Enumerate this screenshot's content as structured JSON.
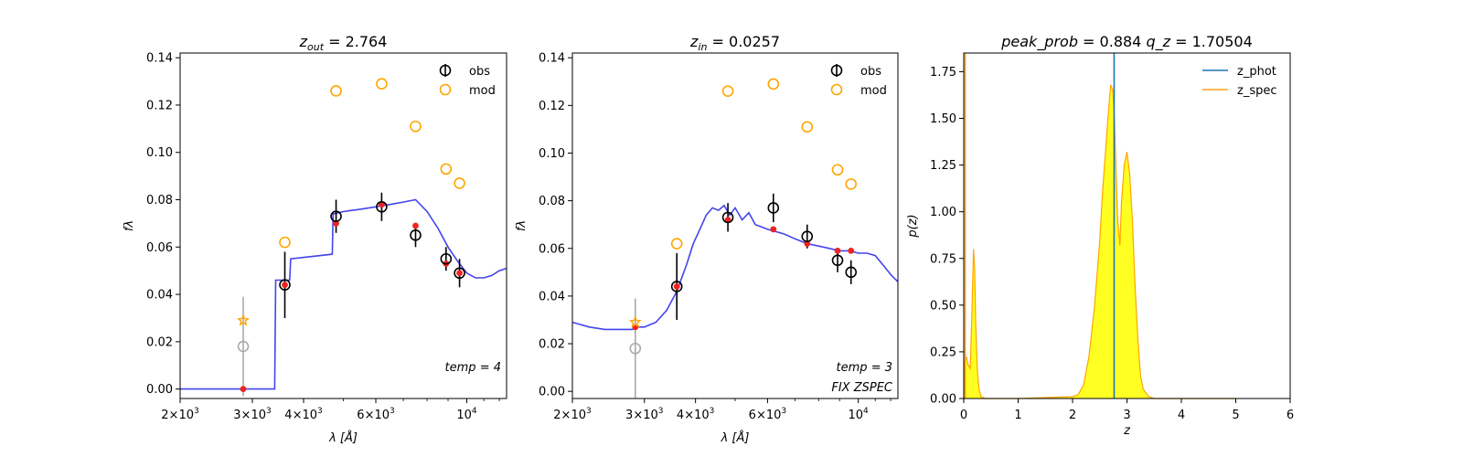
{
  "chart_data": [
    {
      "type": "scatter",
      "panel": "sed-out",
      "title_var": "z",
      "title_sub": "out",
      "title_rest": " = 2.764",
      "xlabel": "λ [Å]",
      "ylabel": "fλ",
      "xscale": "log",
      "xlim": [
        2000,
        12500
      ],
      "ylim": [
        -0.004,
        0.142
      ],
      "xticks": [
        {
          "value": 2000,
          "mant": "2",
          "exp": "3"
        },
        {
          "value": 3000,
          "mant": "3",
          "exp": "3"
        },
        {
          "value": 4000,
          "mant": "4",
          "exp": "3"
        },
        {
          "value": 6000,
          "mant": "6",
          "exp": "3"
        },
        {
          "value": 10000,
          "mant": "",
          "exp": "4"
        }
      ],
      "yticks": [
        0.0,
        0.02,
        0.04,
        0.06,
        0.08,
        0.1,
        0.12,
        0.14
      ],
      "ytick_labels": [
        "0.00",
        "0.02",
        "0.04",
        "0.06",
        "0.08",
        "0.10",
        "0.12",
        "0.14"
      ],
      "legend": [
        "obs",
        "mod"
      ],
      "annotations": [
        "temp = 4"
      ],
      "colors": {
        "model_line": "#4444ee",
        "obs": "#000000",
        "obs_excluded": "#aaaaaa",
        "mod": "#ffa500",
        "synth": "#ee2222"
      },
      "model_line": {
        "x": [
          2000,
          3200,
          3400,
          3420,
          3700,
          3720,
          4700,
          4720,
          5000,
          5500,
          6000,
          6500,
          7000,
          7500,
          8000,
          8500,
          9000,
          9500,
          10000,
          10500,
          11000,
          11500,
          12000,
          12500
        ],
        "y": [
          0.0,
          0.0,
          0.0,
          0.046,
          0.046,
          0.055,
          0.057,
          0.074,
          0.075,
          0.076,
          0.077,
          0.078,
          0.079,
          0.08,
          0.075,
          0.068,
          0.06,
          0.054,
          0.049,
          0.047,
          0.047,
          0.048,
          0.05,
          0.051
        ]
      },
      "obs": [
        {
          "x": 3600,
          "y": 0.044,
          "err": 0.014
        },
        {
          "x": 4800,
          "y": 0.073,
          "err": 0.007
        },
        {
          "x": 6200,
          "y": 0.077,
          "err": 0.006
        },
        {
          "x": 7500,
          "y": 0.065,
          "err": 0.005
        },
        {
          "x": 8900,
          "y": 0.055,
          "err": 0.005
        },
        {
          "x": 9600,
          "y": 0.049,
          "err": 0.006
        }
      ],
      "obs_excluded": [
        {
          "x": 2850,
          "y": 0.018,
          "err": 0.021
        }
      ],
      "mod": [
        {
          "x": 3600,
          "y": 0.062
        },
        {
          "x": 4800,
          "y": 0.126
        },
        {
          "x": 6200,
          "y": 0.129
        },
        {
          "x": 7500,
          "y": 0.111
        },
        {
          "x": 8900,
          "y": 0.093
        },
        {
          "x": 9600,
          "y": 0.087
        }
      ],
      "mod_star": [
        {
          "x": 2850,
          "y": 0.029
        }
      ],
      "synth": [
        {
          "x": 2850,
          "y": 0.0
        },
        {
          "x": 3600,
          "y": 0.044
        },
        {
          "x": 4800,
          "y": 0.07
        },
        {
          "x": 6200,
          "y": 0.078
        },
        {
          "x": 7500,
          "y": 0.069
        },
        {
          "x": 8900,
          "y": 0.053
        },
        {
          "x": 9600,
          "y": 0.049
        }
      ]
    },
    {
      "type": "scatter",
      "panel": "sed-in",
      "title_var": "z",
      "title_sub": "in",
      "title_rest": " = 0.0257",
      "xlabel": "λ [Å]",
      "ylabel": "fλ",
      "xscale": "log",
      "xlim": [
        2000,
        12500
      ],
      "ylim": [
        -0.003,
        0.142
      ],
      "xticks": [
        {
          "value": 2000,
          "mant": "2",
          "exp": "3"
        },
        {
          "value": 3000,
          "mant": "3",
          "exp": "3"
        },
        {
          "value": 4000,
          "mant": "4",
          "exp": "3"
        },
        {
          "value": 6000,
          "mant": "6",
          "exp": "3"
        },
        {
          "value": 10000,
          "mant": "",
          "exp": "4"
        }
      ],
      "yticks": [
        0.0,
        0.02,
        0.04,
        0.06,
        0.08,
        0.1,
        0.12,
        0.14
      ],
      "ytick_labels": [
        "0.00",
        "0.02",
        "0.04",
        "0.06",
        "0.08",
        "0.10",
        "0.12",
        "0.14"
      ],
      "legend": [
        "obs",
        "mod"
      ],
      "annotations": [
        "temp = 3",
        "FIX ZSPEC"
      ],
      "colors": {
        "model_line": "#4444ee",
        "obs": "#000000",
        "obs_excluded": "#aaaaaa",
        "mod": "#ffa500",
        "synth": "#ee2222"
      },
      "model_line": {
        "x": [
          2000,
          2200,
          2400,
          2600,
          2800,
          2900,
          3000,
          3200,
          3400,
          3600,
          3800,
          3950,
          4100,
          4250,
          4400,
          4550,
          4700,
          4850,
          5000,
          5200,
          5400,
          5600,
          5800,
          6000,
          6300,
          6600,
          7000,
          7500,
          8000,
          8500,
          9000,
          9500,
          10000,
          10500,
          11000,
          11500,
          12000,
          12500
        ],
        "y": [
          0.029,
          0.027,
          0.026,
          0.026,
          0.026,
          0.027,
          0.027,
          0.029,
          0.034,
          0.042,
          0.053,
          0.062,
          0.068,
          0.074,
          0.077,
          0.076,
          0.078,
          0.074,
          0.077,
          0.072,
          0.075,
          0.07,
          0.069,
          0.068,
          0.067,
          0.066,
          0.064,
          0.062,
          0.061,
          0.06,
          0.059,
          0.059,
          0.058,
          0.058,
          0.057,
          0.053,
          0.049,
          0.046
        ]
      },
      "obs": [
        {
          "x": 3600,
          "y": 0.044,
          "err": 0.014
        },
        {
          "x": 4800,
          "y": 0.073,
          "err": 0.006
        },
        {
          "x": 6200,
          "y": 0.077,
          "err": 0.006
        },
        {
          "x": 7500,
          "y": 0.065,
          "err": 0.005
        },
        {
          "x": 8900,
          "y": 0.055,
          "err": 0.005
        },
        {
          "x": 9600,
          "y": 0.05,
          "err": 0.005
        }
      ],
      "obs_excluded": [
        {
          "x": 2850,
          "y": 0.018,
          "err": 0.021
        }
      ],
      "mod": [
        {
          "x": 3600,
          "y": 0.062
        },
        {
          "x": 4800,
          "y": 0.126
        },
        {
          "x": 6200,
          "y": 0.129
        },
        {
          "x": 7500,
          "y": 0.111
        },
        {
          "x": 8900,
          "y": 0.093
        },
        {
          "x": 9600,
          "y": 0.087
        }
      ],
      "mod_star": [
        {
          "x": 2850,
          "y": 0.029
        }
      ],
      "synth": [
        {
          "x": 2850,
          "y": 0.027
        },
        {
          "x": 3600,
          "y": 0.044
        },
        {
          "x": 4800,
          "y": 0.072
        },
        {
          "x": 6200,
          "y": 0.068
        },
        {
          "x": 7500,
          "y": 0.062
        },
        {
          "x": 8900,
          "y": 0.059
        },
        {
          "x": 9600,
          "y": 0.059
        }
      ]
    },
    {
      "type": "area",
      "panel": "pz",
      "title_left_var": "peak_prob",
      "title_left_rest": " = 0.884",
      "title_right_var": "q_z",
      "title_right_rest": " = 1.70504",
      "xlabel": "z",
      "ylabel": "p(z)",
      "xlim": [
        0,
        6
      ],
      "ylim": [
        0,
        1.85
      ],
      "xticks": [
        0,
        1,
        2,
        3,
        4,
        5,
        6
      ],
      "xtick_labels": [
        "0",
        "1",
        "2",
        "3",
        "4",
        "5",
        "6"
      ],
      "yticks": [
        0,
        0.25,
        0.5,
        0.75,
        1.0,
        1.25,
        1.5,
        1.75
      ],
      "ytick_labels": [
        "0.00",
        "0.25",
        "0.50",
        "0.75",
        "1.00",
        "1.25",
        "1.50",
        "1.75"
      ],
      "legend": [
        {
          "label": "z_phot",
          "color": "#1f77b4"
        },
        {
          "label": "z_spec",
          "color": "#ff9f1a"
        }
      ],
      "z_phot": 2.764,
      "z_spec": 0.0257,
      "colors": {
        "fill": "#ffff22",
        "curve": "#ffa500",
        "z_phot": "#1f77b4",
        "z_spec": "#ff9f1a"
      },
      "pz": {
        "x": [
          0,
          0.02,
          0.05,
          0.08,
          0.12,
          0.15,
          0.18,
          0.2,
          0.22,
          0.25,
          0.28,
          0.32,
          0.4,
          1.0,
          2.0,
          2.1,
          2.2,
          2.3,
          2.4,
          2.5,
          2.55,
          2.6,
          2.65,
          2.7,
          2.74,
          2.77,
          2.8,
          2.83,
          2.87,
          2.9,
          2.95,
          3.0,
          3.05,
          3.1,
          3.15,
          3.2,
          3.25,
          3.3,
          3.4,
          3.5,
          5.0
        ],
        "y": [
          0,
          0.2,
          0.22,
          0.18,
          0.16,
          0.45,
          0.8,
          0.7,
          0.4,
          0.15,
          0.05,
          0.01,
          0,
          0,
          0.01,
          0.02,
          0.07,
          0.22,
          0.48,
          0.85,
          1.1,
          1.3,
          1.5,
          1.68,
          1.65,
          1.5,
          1.2,
          0.95,
          0.82,
          1.05,
          1.25,
          1.32,
          1.2,
          0.95,
          0.6,
          0.32,
          0.12,
          0.05,
          0.01,
          0,
          0
        ]
      }
    }
  ]
}
